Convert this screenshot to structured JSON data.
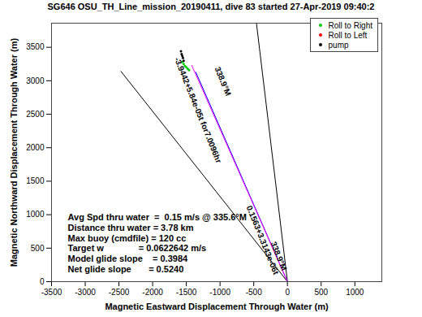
{
  "chart_data": {
    "type": "line",
    "title": "SG646 OSU_TH_Line_mission_20190411, dive 83 started 27-Apr-2019 09:40:2",
    "x_label": "Magnetic Eastward Displacement Through Water (m)",
    "y_label": "Magnetic Northward Displacement Through Water (m)",
    "xlim": [
      -3500,
      1400
    ],
    "ylim": [
      0,
      3860
    ],
    "xticks": [
      -3500,
      -3000,
      -2500,
      -2000,
      -1500,
      -1000,
      -500,
      0,
      500,
      1000
    ],
    "yticks": [
      0,
      500,
      1000,
      1500,
      2000,
      2500,
      3000,
      3500
    ],
    "grid": false,
    "legend": "top-right",
    "series": [
      {
        "type": "line",
        "color": "black",
        "x": [
          0,
          -2470
        ],
        "values": [
          0,
          3140
        ]
      },
      {
        "type": "line",
        "color": "black",
        "x": [
          0,
          -460
        ],
        "values": [
          0,
          3860
        ]
      },
      {
        "type": "line",
        "color": "blue",
        "x": [
          0,
          -1360
        ],
        "values": [
          0,
          3130
        ]
      },
      {
        "type": "line",
        "color": "magenta",
        "x": [
          0,
          -1420
        ],
        "values": [
          0,
          3230
        ]
      },
      {
        "name": "Roll to Right",
        "type": "scatter",
        "marker": "dot",
        "color": "#00cc00",
        "x": [
          -1560,
          -1540,
          -1520,
          -1500,
          -1480,
          -1460
        ],
        "values": [
          3280,
          3250,
          3220,
          3200,
          3180,
          3160
        ]
      },
      {
        "name": "Roll to Left",
        "type": "scatter",
        "marker": "dot",
        "color": "red",
        "x": [],
        "values": []
      },
      {
        "name": "pump",
        "type": "scatter",
        "marker": "dot",
        "color": "black",
        "x": [
          -1580,
          -1570,
          -1560,
          -1550,
          -1540
        ],
        "values": [
          3440,
          3400,
          3370,
          3340,
          3300
        ]
      }
    ],
    "annotations": [
      {
        "text": "-3.9442+5.84e-05t for7.0096hr",
        "x": -1330,
        "y": 2560
      },
      {
        "text": "338.9°M",
        "x": -960,
        "y": 2990
      },
      {
        "text": "0.1563+3.3143e-06t",
        "x": -370,
        "y": 620
      },
      {
        "text": "338.9°M",
        "x": -130,
        "y": 380
      }
    ],
    "stats": [
      "Avg Spd thru water  =  0.15 m/s @ 335.6°M",
      "Distance thru water = 3.78 km",
      "Max buoy (cmdfile) = 120 cc",
      "Target w              = 0.0622642 m/s",
      "Model glide slope    = 0.3984",
      "Net glide slope       = 0.5240"
    ]
  }
}
